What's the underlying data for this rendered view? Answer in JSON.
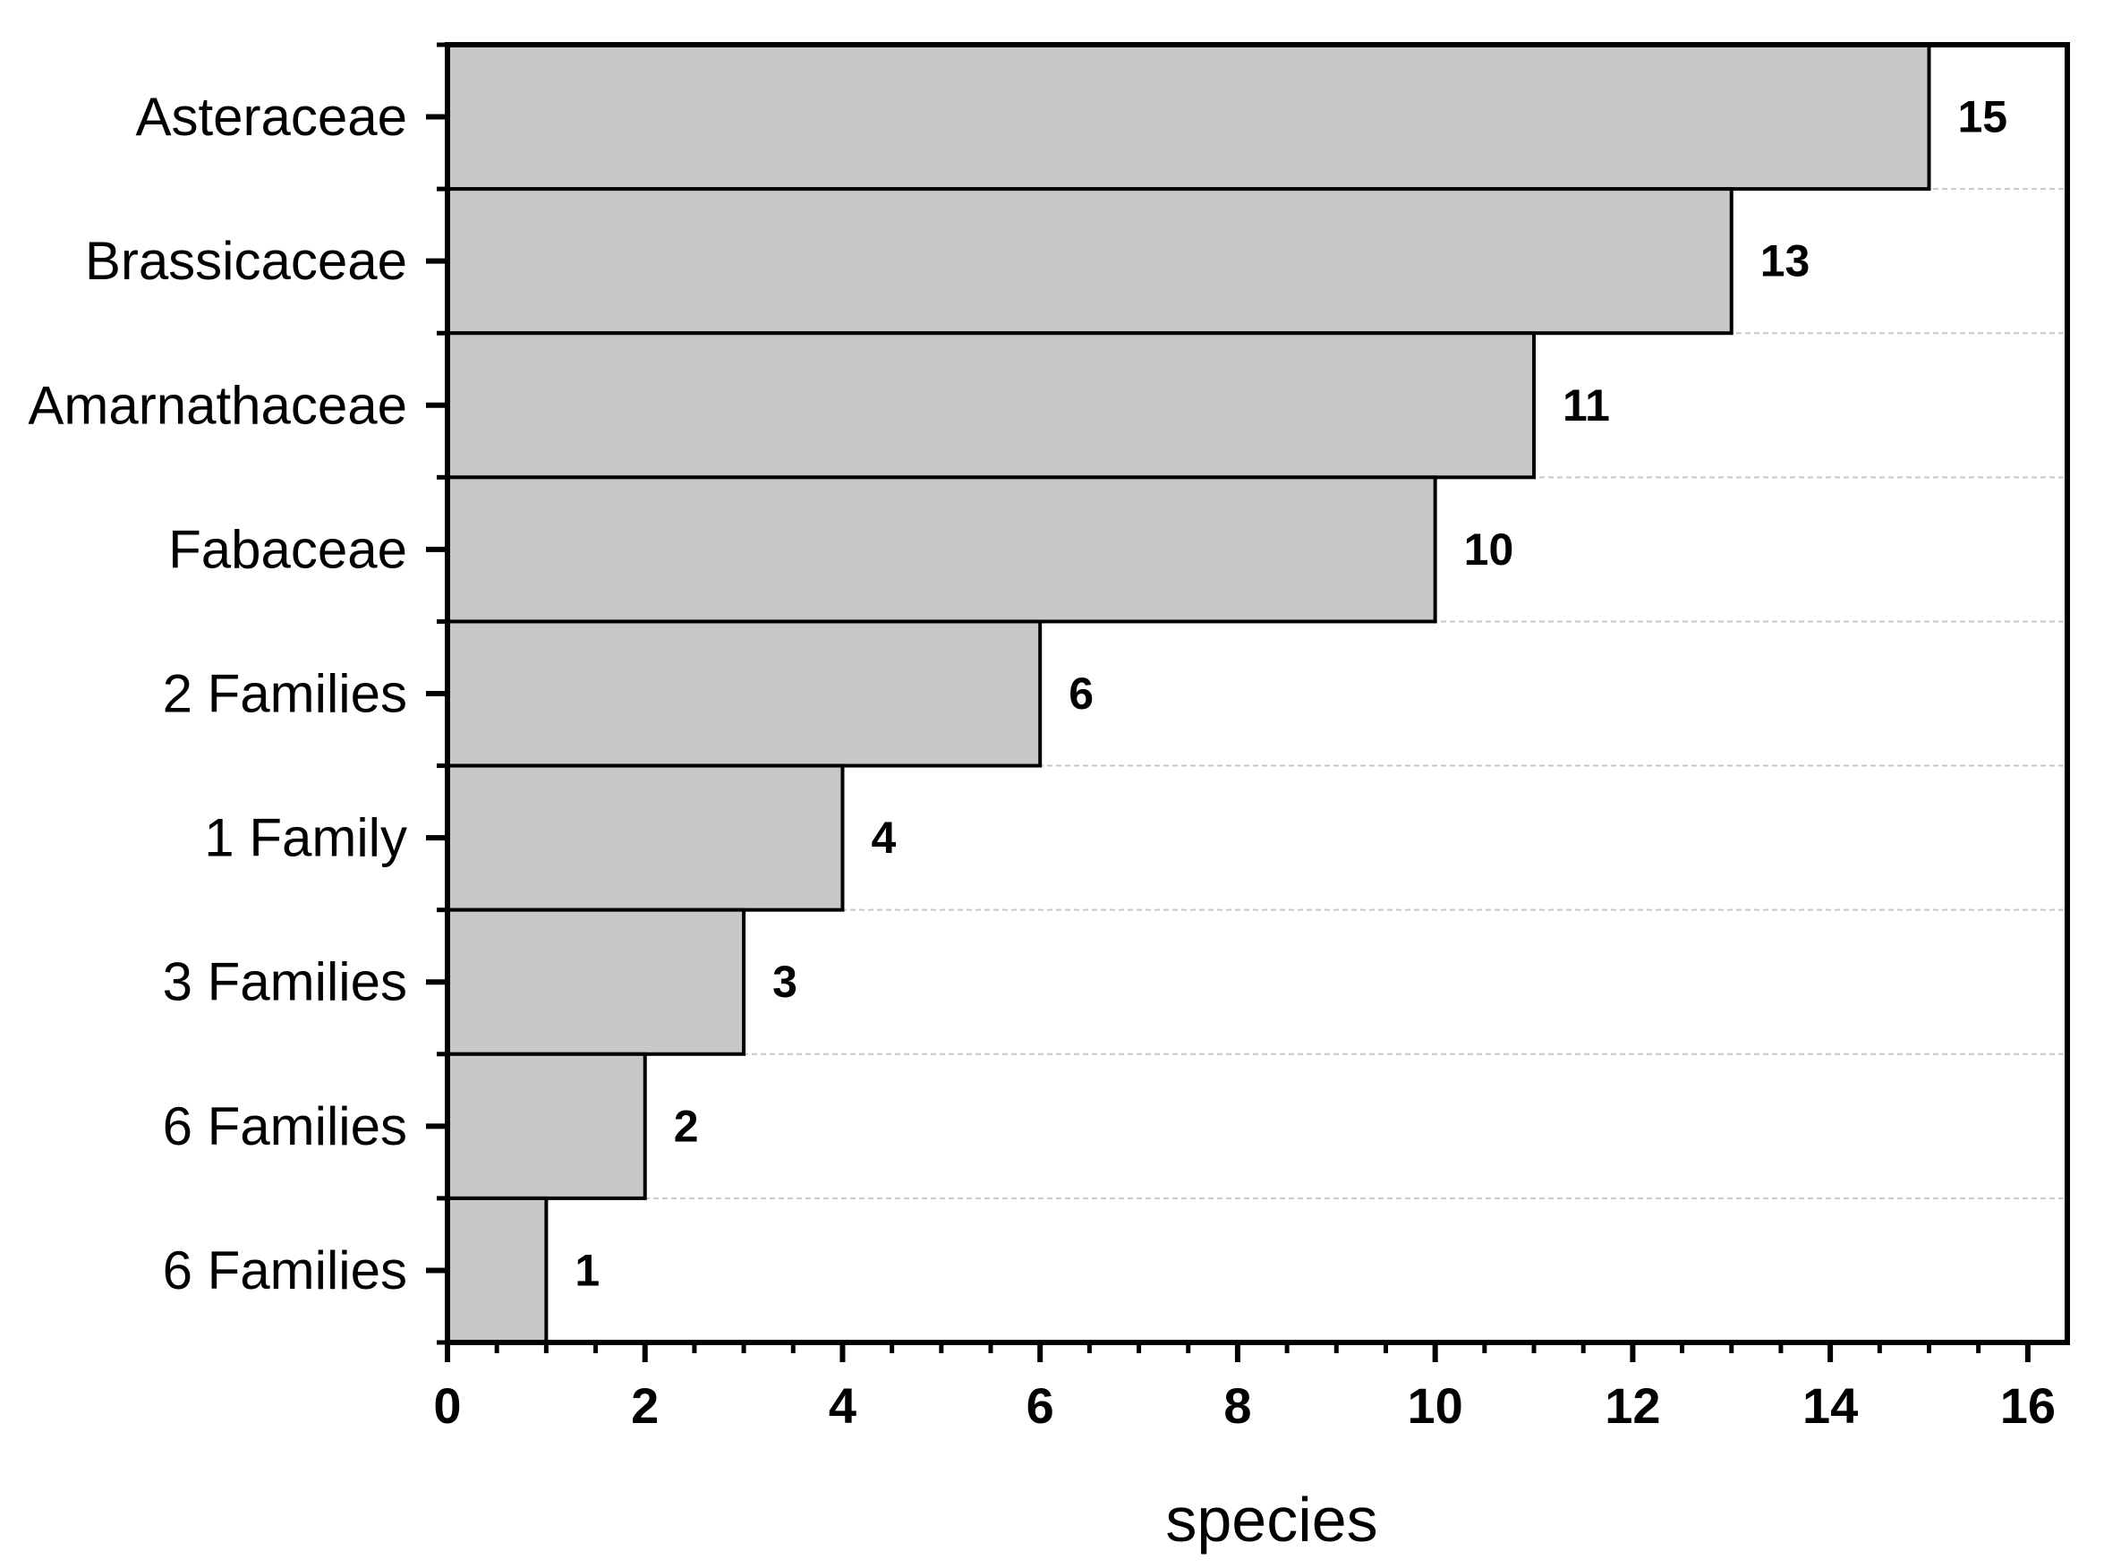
{
  "chart_data": {
    "type": "bar",
    "orientation": "horizontal",
    "categories": [
      "Asteraceae",
      "Brassicaceae",
      "Amarnathaceae",
      "Fabaceae",
      "2 Families",
      "1 Family",
      "3 Families",
      "6 Families",
      "6 Families"
    ],
    "values": [
      15,
      13,
      11,
      10,
      6,
      4,
      3,
      2,
      1
    ],
    "value_labels": [
      "15",
      "13",
      "11",
      "10",
      "6",
      "4",
      "3",
      "2",
      "1"
    ],
    "xlabel": "species",
    "ylabel": "",
    "xlim": [
      0,
      16.4
    ],
    "xticks": [
      0,
      2,
      4,
      6,
      8,
      10,
      12,
      14,
      16
    ],
    "xtick_labels": [
      "0",
      "2",
      "4",
      "6",
      "8",
      "10",
      "12",
      "14",
      "16"
    ],
    "grid": "horizontal dashed separators",
    "colors": {
      "bar_fill": "#c8c8c8",
      "bar_stroke": "#000000",
      "grid": "#c8c8c8",
      "axis": "#000000"
    }
  }
}
